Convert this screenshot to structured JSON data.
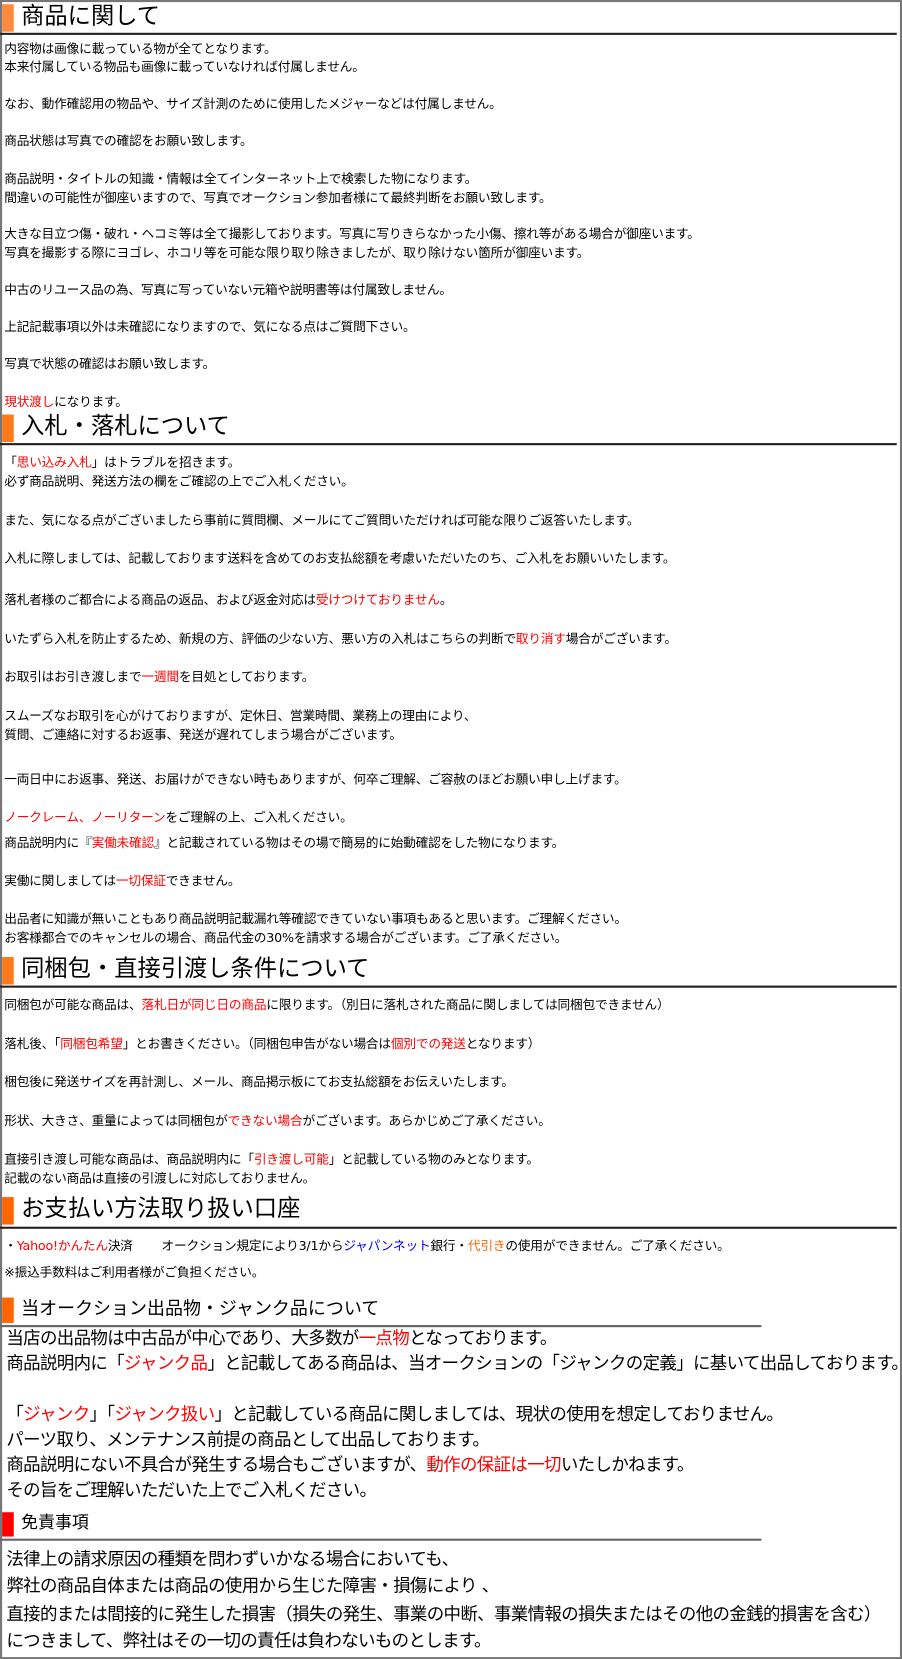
{
  "colors": {
    "black": "#000000",
    "red": "#ff0000",
    "blue": "#0000ff",
    "orange": "#ff6600",
    "bar_orange": "#ff7a1a",
    "bar_red": "#ff0000"
  },
  "sections": [
    {
      "title": "商品に関して",
      "bar_color": "#ff8a3d",
      "lines": [
        [
          {
            "t": "内容物は画像に載っている物が全てとなります。"
          }
        ],
        [
          {
            "t": "本来付属している物品も画像に載っていなければ付属しません。"
          }
        ],
        [
          {
            "t": "なお、動作確認用の物品や、サイズ計測のために使用したメジャーなどは付属しません。"
          }
        ],
        [
          {
            "t": "商品状態は写真での確認をお願い致します。"
          }
        ],
        [
          {
            "t": "商品説明・タイトルの知識・情報は全てインターネット上で検索した物になります。"
          }
        ],
        [
          {
            "t": "間違いの可能性が御座いますので、写真でオークション参加者様にて最終判断をお願い致します。"
          }
        ],
        [
          {
            "t": "大きな目立つ傷・破れ・ヘコミ等は全て撮影しております。写真に写りきらなかった小傷、擦れ等がある場合が御座います。"
          }
        ],
        [
          {
            "t": "写真を撮影する際にヨゴレ、ホコリ等を可能な限り取り除きましたが、取り除けない箇所が御座います。"
          }
        ],
        [
          {
            "t": "中古のリユース品の為、写真に写っていない元箱や説明書等は付属致しません。"
          }
        ],
        [
          {
            "t": "上記記載事項以外は未確認になりますので、気になる点はご質問下さい。"
          }
        ],
        [
          {
            "t": "写真で状態の確認はお願い致します。"
          }
        ],
        [
          {
            "t": "現状渡し",
            "c": "red"
          },
          {
            "t": "になります。"
          }
        ]
      ]
    },
    {
      "title": "入札・落札について",
      "bar_color": "#ff7a1a",
      "lines": [
        [
          {
            "t": "「"
          },
          {
            "t": "思い込み入札",
            "c": "red"
          },
          {
            "t": "」はトラブルを招きます。"
          }
        ],
        [
          {
            "t": "必ず商品説明、発送方法の欄をご確認の上でご入札ください。"
          }
        ],
        [
          {
            "t": "また、気になる点がございましたら事前に質問欄、メールにてご質問いただければ可能な限りご返答いたします。"
          }
        ],
        [
          {
            "t": "入札に際しましては、記載しております送料を含めてのお支払総額を考慮いただいたのち、ご入札をお願いいたします。"
          }
        ],
        [
          {
            "t": "落札者様のご都合による商品の返品、および返金対応は"
          },
          {
            "t": "受けつけておりません",
            "c": "red"
          },
          {
            "t": "。"
          }
        ],
        [
          {
            "t": "いたずら入札を防止するため、新規の方、評価の少ない方、悪い方の入札はこちらの判断で"
          },
          {
            "t": "取り消す",
            "c": "red"
          },
          {
            "t": "場合がございます。"
          }
        ],
        [
          {
            "t": "お取引はお引き渡しまで"
          },
          {
            "t": "一週間",
            "c": "red"
          },
          {
            "t": "を目処としております。"
          }
        ],
        [
          {
            "t": "スムーズなお取引を心がけておりますが、定休日、営業時間、業務上の理由により、"
          }
        ],
        [
          {
            "t": "質問、ご連絡に対するお返事、発送が遅れてしまう場合がございます。"
          }
        ],
        [
          {
            "t": "一両日中にお返事、発送、お届けができない時もありますが、何卒ご理解、ご容赦のほどお願い申し上げます。"
          }
        ],
        [
          {
            "t": "ノークレーム、ノーリターン",
            "c": "red"
          },
          {
            "t": "をご理解の上、ご入札ください。"
          }
        ],
        [
          {
            "t": "商品説明内に『"
          },
          {
            "t": "実働未確認",
            "c": "red"
          },
          {
            "t": "』と記載されている物はその場で簡易的に始動確認をした物になります。"
          }
        ],
        [
          {
            "t": "実働に関しましては"
          },
          {
            "t": "一切保証",
            "c": "red"
          },
          {
            "t": "できません。"
          }
        ],
        [
          {
            "t": "出品者に知識が無いこともあり商品説明記載漏れ等確認できていない事項もあると思います。ご理解ください。"
          }
        ],
        [
          {
            "t": "お客様都合でのキャンセルの場合、商品代金の30%を請求する場合がございます。ご了承ください。"
          }
        ]
      ]
    },
    {
      "title": "同梱包・直接引渡し条件について",
      "bar_color": "#ff7a1a",
      "lines": [
        [
          {
            "t": "同梱包が可能な商品は、"
          },
          {
            "t": "落札日が同じ日の商品",
            "c": "red"
          },
          {
            "t": "に限ります。（別日に落札された商品に関しましては同梱包できません）"
          }
        ],
        [
          {
            "t": "落札後、「"
          },
          {
            "t": "同梱包希望",
            "c": "red"
          },
          {
            "t": "」とお書きください。（同梱包申告がない場合は"
          },
          {
            "t": "個別での発送",
            "c": "red"
          },
          {
            "t": "となります）"
          }
        ],
        [
          {
            "t": "梱包後に発送サイズを再計測し、メール、商品掲示板にてお支払総額をお伝えいたします。"
          }
        ],
        [
          {
            "t": "形状、大きさ、重量によっては同梱包が"
          },
          {
            "t": "できない場合",
            "c": "red"
          },
          {
            "t": "がございます。あらかじめご了承ください。"
          }
        ],
        [
          {
            "t": "直接引き渡し可能な商品は、商品説明内に「"
          },
          {
            "t": "引き渡し可能",
            "c": "red"
          },
          {
            "t": "」と記載している物のみとなります。"
          }
        ],
        [
          {
            "t": "記載のない商品は直接の引渡しに対応しておりません。"
          }
        ]
      ]
    },
    {
      "title": "お支払い方法取り扱い口座",
      "bar_color": "#ff6600",
      "lines": [
        [
          {
            "t": "・"
          },
          {
            "t": "Yahoo!かんたん",
            "c": "red"
          },
          {
            "t": "決済　　 オークション規定により3/1から"
          },
          {
            "t": "ジャパンネット",
            "c": "blue"
          },
          {
            "t": "銀行・"
          },
          {
            "t": "代引き",
            "c": "orange"
          },
          {
            "t": "の使用ができません。ご了承ください。"
          }
        ],
        [
          {
            "t": "※振込手数料はご利用者様がご負担ください。"
          }
        ]
      ]
    },
    {
      "title": "当オークション出品物・ジャンク品について",
      "bar_color": "#ff6600",
      "lines": [
        [
          {
            "t": "当店の出品物は中古品が中心であり、大多数が"
          },
          {
            "t": "一点物",
            "c": "red"
          },
          {
            "t": "となっております。"
          }
        ],
        [
          {
            "t": "商品説明内に「"
          },
          {
            "t": "ジャンク品",
            "c": "red"
          },
          {
            "t": "」と記載してある商品は、当オークションの「ジャンクの定義」に基いて出品しております。"
          }
        ],
        [
          {
            "t": "「"
          },
          {
            "t": "ジャンク",
            "c": "red"
          },
          {
            "t": "」「"
          },
          {
            "t": "ジャンク扱い",
            "c": "red"
          },
          {
            "t": "」と記載している商品に関しましては、現状の使用を想定しておりません。"
          }
        ],
        [
          {
            "t": "パーツ取り、メンテナンス前提の商品として出品しております。"
          }
        ],
        [
          {
            "t": "商品説明にない不具合が発生する場合もございますが、"
          },
          {
            "t": "動作の保証は一切",
            "c": "red"
          },
          {
            "t": "いたしかねます。"
          }
        ],
        [
          {
            "t": "その旨をご理解いただいた上でご入札ください。"
          }
        ]
      ]
    },
    {
      "title": "免責事項",
      "bar_color": "#ff0000",
      "lines": [
        [
          {
            "t": "法律上の請求原因の種類を問わずいかなる場合においても、"
          }
        ],
        [
          {
            "t": "弊社の商品自体または商品の使用から生じた障害・損傷により 、"
          }
        ],
        [
          {
            "t": "直接的または間接的に発生した損害（損失の発生、事業の中断、事業情報の損失またはその他の金銭的損害を含む）"
          }
        ],
        [
          {
            "t": "につきまして、弊社はその一切の責任は負わないものとします。"
          }
        ]
      ]
    }
  ]
}
